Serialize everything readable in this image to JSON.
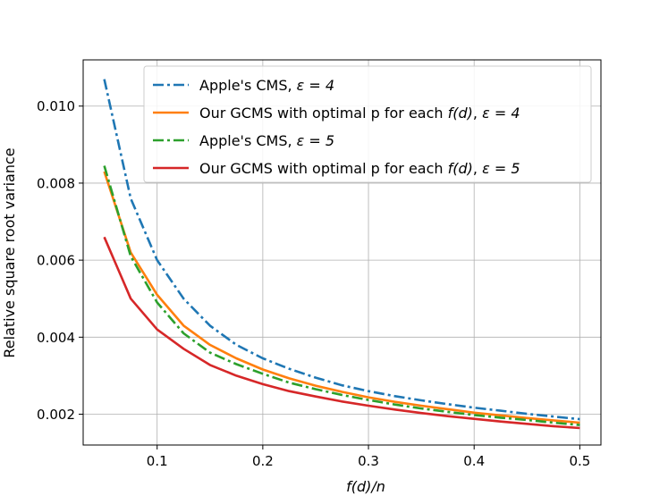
{
  "chart_data": {
    "type": "line",
    "title": "",
    "xlabel": "f(d)/n",
    "ylabel": "Relative square root variance",
    "xlim": [
      0.03,
      0.52
    ],
    "ylim": [
      0.0012,
      0.0112
    ],
    "x_ticks": [
      0.1,
      0.2,
      0.3,
      0.4,
      0.5
    ],
    "x_tick_labels": [
      "0.1",
      "0.2",
      "0.3",
      "0.4",
      "0.5"
    ],
    "y_ticks": [
      0.002,
      0.004,
      0.006,
      0.008,
      0.01
    ],
    "y_tick_labels": [
      "0.002",
      "0.004",
      "0.006",
      "0.008",
      "0.010"
    ],
    "grid": true,
    "legend_position": "top-right",
    "x": [
      0.05,
      0.075,
      0.1,
      0.125,
      0.15,
      0.175,
      0.2,
      0.225,
      0.25,
      0.275,
      0.3,
      0.325,
      0.35,
      0.375,
      0.4,
      0.425,
      0.45,
      0.475,
      0.5
    ],
    "series": [
      {
        "name": "Apple's CMS, ε = 4",
        "legend_label": "Apple's CMS, ",
        "legend_math": "ε = 4",
        "color": "#1f77b4",
        "style": "dashdot",
        "values": [
          0.0107,
          0.0076,
          0.006,
          0.005,
          0.0043,
          0.0038,
          0.00345,
          0.00318,
          0.00295,
          0.00275,
          0.0026,
          0.00247,
          0.00236,
          0.00226,
          0.00217,
          0.00209,
          0.00201,
          0.00194,
          0.00187
        ]
      },
      {
        "name": "Our GCMS with optimal p for each f(d), ε = 4",
        "legend_label": "Our GCMS with optimal p for each ",
        "legend_func": "f(d)",
        "legend_math": "ε = 4",
        "color": "#ff7f0e",
        "style": "solid",
        "values": [
          0.0083,
          0.0062,
          0.0051,
          0.0043,
          0.0038,
          0.00345,
          0.00316,
          0.00293,
          0.00274,
          0.00258,
          0.00244,
          0.00232,
          0.00222,
          0.00213,
          0.00204,
          0.00197,
          0.0019,
          0.00184,
          0.00178
        ]
      },
      {
        "name": "Apple's CMS, ε = 5",
        "legend_label": "Apple's CMS, ",
        "legend_math": "ε = 5",
        "color": "#2ca02c",
        "style": "dashdot",
        "values": [
          0.00845,
          0.0061,
          0.0049,
          0.0041,
          0.0036,
          0.0033,
          0.00305,
          0.00282,
          0.00265,
          0.0025,
          0.00237,
          0.00225,
          0.00215,
          0.00206,
          0.00198,
          0.00191,
          0.00185,
          0.00178,
          0.00172
        ]
      },
      {
        "name": "Our GCMS with optimal p for each f(d), ε = 5",
        "legend_label": "Our GCMS with optimal p for each ",
        "legend_func": "f(d)",
        "legend_math": "ε = 5",
        "color": "#d62728",
        "style": "solid",
        "values": [
          0.0066,
          0.005,
          0.0042,
          0.0037,
          0.00328,
          0.003,
          0.00278,
          0.0026,
          0.00246,
          0.00233,
          0.00222,
          0.00212,
          0.00203,
          0.00195,
          0.00188,
          0.00181,
          0.00175,
          0.00169,
          0.00164
        ]
      }
    ]
  }
}
